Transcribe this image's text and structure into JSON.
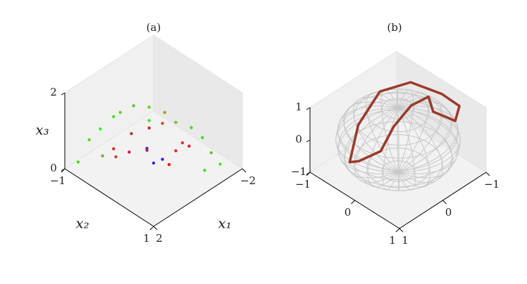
{
  "chart_data": [
    {
      "type": "scatter3d",
      "title": "(a)",
      "x_label": "x₁",
      "y_label": "x₂",
      "z_label": "x₃",
      "xlim": [
        -2,
        2
      ],
      "ylim": [
        -1,
        1
      ],
      "zlim": [
        0,
        2
      ],
      "xticks": [
        {
          "value": -2,
          "label": "−2"
        },
        2
      ],
      "yticks": [
        {
          "value": -1,
          "label": "−1"
        },
        1
      ],
      "zticks": [
        0,
        2
      ],
      "series": [
        {
          "x": [
            0.8,
            0.9,
            1.2,
            1.4,
            1.5,
            1.0,
            0.6,
            0.4,
            0.2,
            0.0,
            -0.3,
            -0.6,
            -0.8,
            -0.4,
            -0.2,
            0.0,
            0.2,
            0.1,
            0.3,
            -0.1,
            0.5,
            0.7,
            1.1,
            1.6,
            -1.0,
            -0.7,
            0.6,
            0.3,
            1.3,
            -0.1
          ],
          "y": [
            0.3,
            0.0,
            -0.3,
            -0.5,
            -0.7,
            -0.4,
            -0.2,
            0.1,
            0.3,
            0.5,
            0.7,
            0.8,
            0.9,
            0.6,
            0.4,
            0.2,
            0.1,
            -0.1,
            0.0,
            0.3,
            -0.3,
            -0.5,
            -0.6,
            -0.9,
            1.0,
            0.8,
            0.2,
            0.4,
            -0.1,
            0.6
          ],
          "z": [
            1.8,
            2.0,
            1.6,
            1.2,
            0.8,
            0.6,
            1.0,
            1.3,
            1.5,
            1.6,
            1.5,
            1.2,
            0.8,
            0.9,
            0.7,
            0.4,
            0.3,
            0.5,
            0.6,
            0.3,
            0.4,
            0.2,
            0.3,
            0.1,
            0.5,
            0.3,
            2.0,
            1.9,
            1.9,
            1.1
          ],
          "colors": [
            "#44dd22",
            "#55cc22",
            "#44dd22",
            "#33ee33",
            "#55dd22",
            "#cc3322",
            "#aa4422",
            "#dd2222",
            "#cc5522",
            "#66cc22",
            "#44dd22",
            "#44dd22",
            "#55cc22",
            "#dd2222",
            "#ee2222",
            "#4422cc",
            "#3322dd",
            "#6622bb",
            "#aa2266",
            "#ee1111",
            "#bb2244",
            "#cc4422",
            "#88aa22",
            "#44dd22",
            "#44ee22",
            "#44dd22",
            "#55dd22",
            "#88aa22",
            "#66cc22",
            "#dd3322"
          ]
        }
      ]
    },
    {
      "type": "curve3d",
      "title": "(b)",
      "xlim": [
        -1,
        1
      ],
      "ylim": [
        -1,
        1
      ],
      "zlim": [
        -1,
        1
      ],
      "xticks": [
        {
          "value": -1,
          "label": "−1"
        },
        0,
        1
      ],
      "yticks": [
        {
          "value": -1,
          "label": "−1"
        },
        0,
        1
      ],
      "zticks": [
        {
          "value": -1,
          "label": "−1"
        },
        0,
        1
      ],
      "series": [
        {
          "color": "#9b3a2a",
          "x": [
            0.6,
            0.3,
            -0.2,
            -0.6,
            -0.8,
            -0.9,
            -0.7,
            -0.5,
            -0.6,
            -0.3,
            0.1,
            0.4,
            0.6,
            0.6
          ],
          "y": [
            -0.5,
            -0.6,
            -0.6,
            -0.3,
            0.2,
            0.5,
            0.6,
            0.3,
            0.1,
            0.0,
            0.0,
            0.0,
            -0.3,
            -0.5
          ],
          "z": [
            -0.6,
            0.2,
            0.8,
            1.0,
            0.9,
            0.7,
            0.5,
            0.7,
            0.9,
            0.8,
            0.5,
            0.0,
            -0.4,
            -0.6
          ]
        }
      ]
    }
  ]
}
